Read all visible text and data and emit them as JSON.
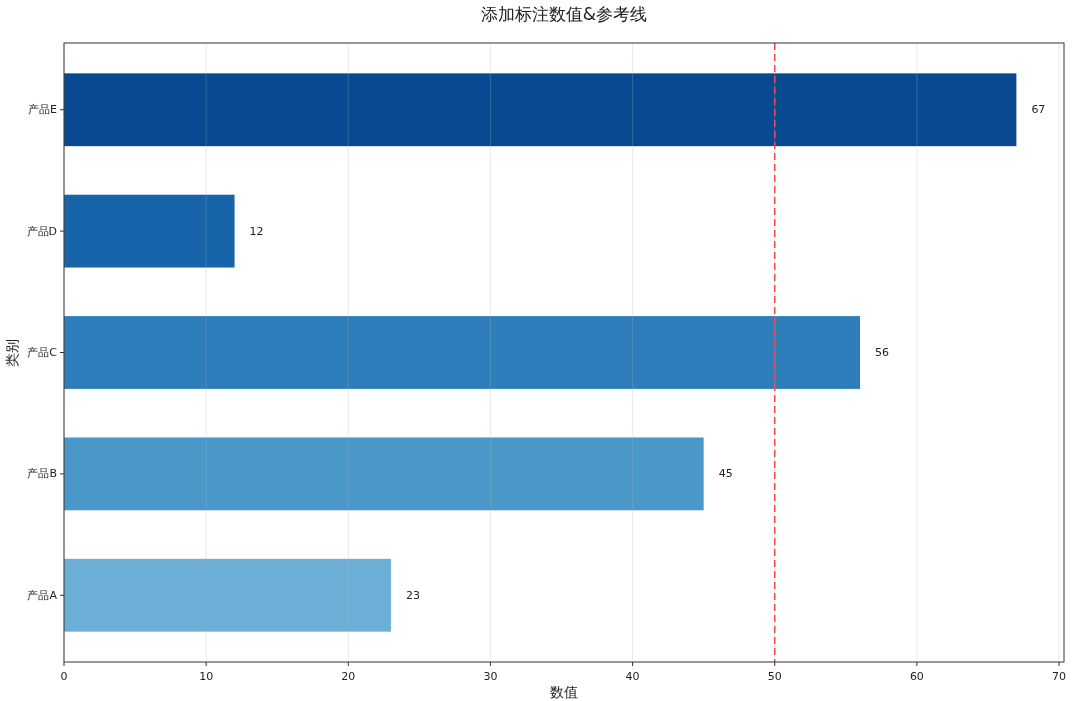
{
  "chart_data": {
    "type": "bar",
    "orientation": "horizontal",
    "title": "添加标注数值&参考线",
    "xlabel": "数值",
    "ylabel": "类别",
    "categories": [
      "产品E",
      "产品D",
      "产品C",
      "产品B",
      "产品A"
    ],
    "values": [
      67,
      12,
      56,
      45,
      23
    ],
    "colors": [
      "#084a91",
      "#1764ab",
      "#2e7ebc",
      "#4a98c9",
      "#6baed6"
    ],
    "xlim": [
      0,
      70.35
    ],
    "xticks": [
      0,
      10,
      20,
      30,
      40,
      50,
      60,
      70
    ],
    "grid": "x",
    "data_labels": true,
    "ref_lines": [
      {
        "axis": "x",
        "value": 50,
        "color": "#f24b4b",
        "line_style": "dashed"
      }
    ]
  }
}
